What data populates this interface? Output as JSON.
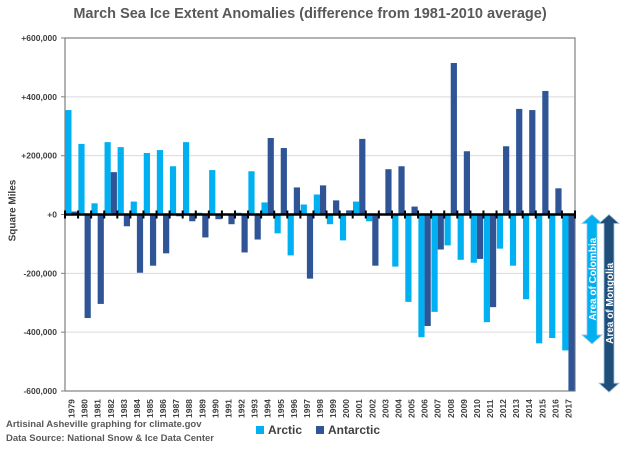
{
  "chart_data": {
    "type": "bar",
    "title": "March Sea Ice Extent Anomalies (difference from 1981-2010 average)",
    "ylabel": "Square Miles",
    "xlabel": "",
    "ylim": [
      -600000,
      600000
    ],
    "yticks": [
      600000,
      400000,
      200000,
      0,
      -200000,
      -400000,
      -600000
    ],
    "ytick_labels": [
      "+600,000",
      "+400,000",
      "+200,000",
      "+0",
      "-200,000",
      "-400,000",
      "-600,000"
    ],
    "grid": true,
    "legend": "bottom",
    "categories": [
      "1979",
      "1980",
      "1981",
      "1982",
      "1983",
      "1984",
      "1985",
      "1986",
      "1987",
      "1988",
      "1989",
      "1990",
      "1991",
      "1992",
      "1993",
      "1994",
      "1995",
      "1996",
      "1997",
      "1998",
      "1999",
      "2000",
      "2001",
      "2002",
      "2003",
      "2004",
      "2005",
      "2006",
      "2007",
      "2008",
      "2009",
      "2010",
      "2011",
      "2012",
      "2013",
      "2014",
      "2015",
      "2016",
      "2017"
    ],
    "series": [
      {
        "name": "Arctic",
        "color": "#00B0F0",
        "values": [
          355000,
          240000,
          38000,
          246000,
          229000,
          44000,
          209000,
          219000,
          164000,
          246000,
          6000,
          151000,
          0,
          6000,
          147000,
          41000,
          -64000,
          -139000,
          34000,
          68000,
          -33000,
          -88000,
          44000,
          -23000,
          0,
          -177000,
          -297000,
          -417000,
          -331000,
          -105000,
          -154000,
          -164000,
          -366000,
          -116000,
          -174000,
          -288000,
          -438000,
          -420000,
          -462000
        ]
      },
      {
        "name": "Antarctic",
        "color": "#2F5597",
        "values": [
          10000,
          -352000,
          -304000,
          144000,
          -40000,
          -198000,
          -174000,
          -132000,
          -6000,
          -23000,
          -78000,
          -16000,
          -33000,
          -129000,
          -85000,
          260000,
          226000,
          92000,
          -218000,
          99000,
          48000,
          14000,
          257000,
          -174000,
          154000,
          164000,
          27000,
          -379000,
          -119000,
          515000,
          215000,
          -151000,
          -315000,
          232000,
          359000,
          355000,
          420000,
          89000,
          -599000
        ]
      }
    ],
    "annotations": [
      {
        "label": "Area of Colombia",
        "value": -440000,
        "color": "#00B0F0"
      },
      {
        "label": "Area of Mongolia",
        "value": -604000,
        "color": "#1F4E79"
      }
    ]
  },
  "footer": {
    "credit": "Artisinal Asheville graphing for climate.gov",
    "source": "Data Source: National Snow & Ice Data Center"
  }
}
